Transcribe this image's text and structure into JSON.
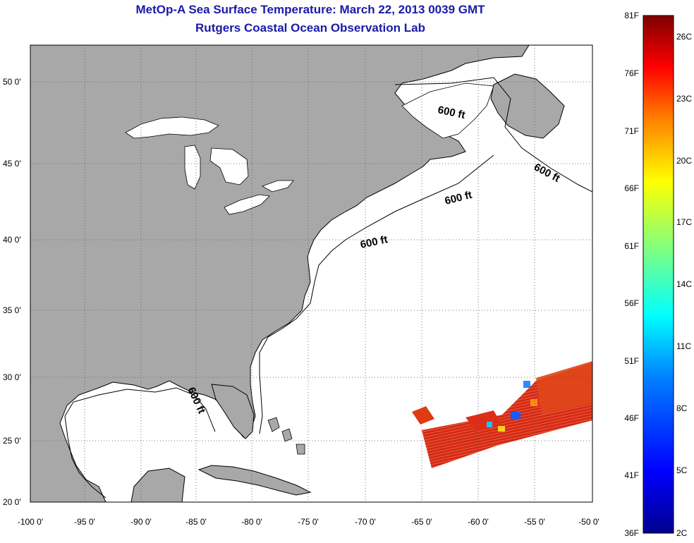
{
  "title_line1": "MetOp-A Sea Surface Temperature:  March 22, 2013 0039 GMT",
  "title_line2": "Rutgers Coastal Ocean Observation Lab",
  "map": {
    "lon_ticks": [
      "-100 0'",
      "-95 0'",
      "-90 0'",
      "-85 0'",
      "-80 0'",
      "-75 0'",
      "-70 0'",
      "-65 0'",
      "-60 0'",
      "-55 0'",
      "-50 0'"
    ],
    "lat_ticks": [
      "50 0'",
      "45 0'",
      "40 0'",
      "35 0'",
      "30 0'",
      "25 0'",
      "20 0'"
    ],
    "contour_label": "600 ft",
    "colors": {
      "land": "#a8a8a8",
      "ocean": "#ffffff",
      "grid": "#555555"
    }
  },
  "colorbar": {
    "f_labels": [
      "81F",
      "76F",
      "71F",
      "66F",
      "61F",
      "56F",
      "51F",
      "46F",
      "41F",
      "36F"
    ],
    "c_labels": [
      "26C",
      "23C",
      "20C",
      "17C",
      "14C",
      "11C",
      "8C",
      "5C",
      "2C"
    ],
    "colors": [
      "#7f0000",
      "#ff0000",
      "#ff8000",
      "#ffff00",
      "#80ff80",
      "#00ffff",
      "#0080ff",
      "#0000ff",
      "#00008f"
    ]
  }
}
